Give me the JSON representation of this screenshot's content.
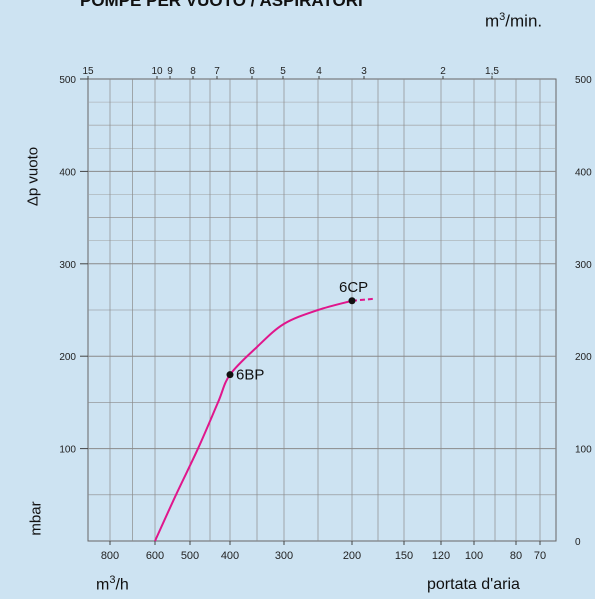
{
  "chart_data": {
    "type": "line",
    "title": "POMPE PER VUOTO / ASPIRATORI",
    "top_axis_unit_base": "m",
    "top_axis_unit_exp": "3",
    "top_axis_unit_suffix": "/min.",
    "ylabel": "Δp vuoto",
    "yunit": "mbar",
    "xunit_base": "m",
    "xunit_exp": "3",
    "xunit_suffix": "/h",
    "xlabel": "portata d'aria",
    "ylim": [
      0,
      500
    ],
    "y_ticks_left": [
      100,
      200,
      300,
      400,
      500
    ],
    "y_ticks_right": [
      0,
      100,
      200,
      300,
      400,
      500
    ],
    "x_ticks_bottom": [
      "800",
      "600",
      "500",
      "400",
      "300",
      "200",
      "150",
      "120",
      "100",
      "80",
      "70"
    ],
    "x_ticks_top": [
      "15",
      "10",
      "9",
      "8",
      "7",
      "6",
      "5",
      "4",
      "3",
      "2",
      "1,5"
    ],
    "series": [
      {
        "color": "#e0168c",
        "points": [
          [
            600,
            0
          ],
          [
            540,
            50
          ],
          [
            480,
            100
          ],
          [
            430,
            150
          ],
          [
            400,
            180
          ],
          [
            350,
            210
          ],
          [
            300,
            235
          ],
          [
            250,
            250
          ],
          [
            200,
            260
          ]
        ],
        "extension": [
          [
            200,
            260
          ],
          [
            180,
            262
          ]
        ]
      }
    ],
    "markers": [
      {
        "label": "6BP",
        "x": 400,
        "y": 180
      },
      {
        "label": "6CP",
        "x": 200,
        "y": 260
      }
    ],
    "grid": true
  }
}
